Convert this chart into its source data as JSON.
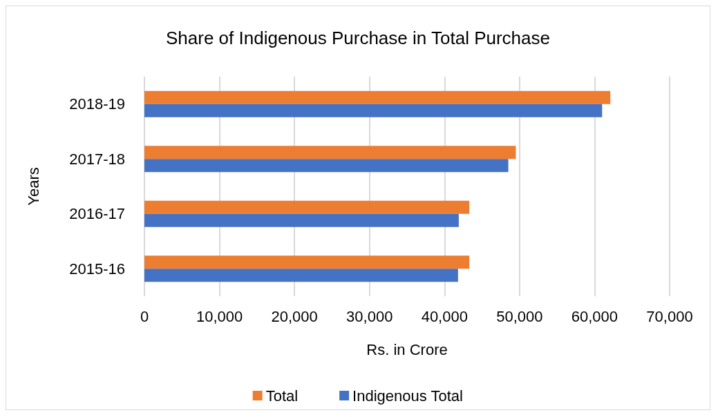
{
  "chart_data": {
    "type": "bar",
    "orientation": "horizontal",
    "title": "Share of Indigenous Purchase in Total Purchase",
    "xlabel": "Rs. in Crore",
    "ylabel": "Years",
    "categories": [
      "2018-19",
      "2017-18",
      "2016-17",
      "2015-16"
    ],
    "series": [
      {
        "name": "Total",
        "color": "#ed7d31",
        "values": [
          62100,
          49500,
          43300,
          43300
        ]
      },
      {
        "name": "Indigenous Total",
        "color": "#4472c4",
        "values": [
          61000,
          48500,
          41900,
          41800
        ]
      }
    ],
    "xlim": [
      0,
      70000
    ],
    "xticks": [
      0,
      {
        "value": 10000,
        "label": "10,000"
      },
      {
        "value": 20000,
        "label": "20,000"
      },
      {
        "value": 30000,
        "label": "30,000"
      },
      {
        "value": 40000,
        "label": "40,000"
      },
      {
        "value": 50000,
        "label": "50,000"
      },
      {
        "value": 60000,
        "label": "60,000"
      },
      {
        "value": 70000,
        "label": "70,000"
      }
    ],
    "grid": "x",
    "legend": "bottom"
  }
}
